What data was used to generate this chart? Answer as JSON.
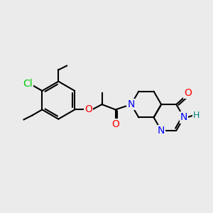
{
  "bg_color": "#ebebeb",
  "bond_color": "#000000",
  "bond_width": 1.5,
  "atom_colors": {
    "N": "#0000ff",
    "O": "#ff0000",
    "Cl": "#00cc00",
    "H": "#008080",
    "C": "#000000"
  },
  "font_size": 10,
  "font_size_h": 9,
  "figsize": [
    3.0,
    3.0
  ],
  "dpi": 100
}
